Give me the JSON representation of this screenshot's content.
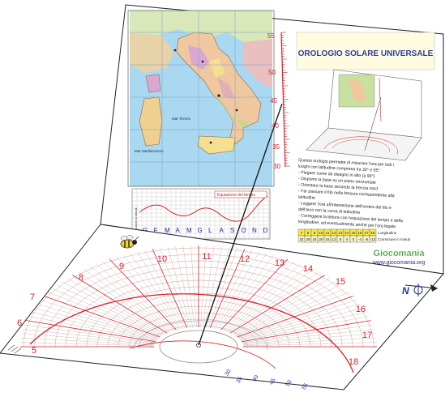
{
  "title": "OROLOGIO SOLARE UNIVERSALE",
  "latitude_scale": {
    "labels": [
      "55",
      "50",
      "45",
      "40",
      "35",
      "30"
    ]
  },
  "instructions": [
    "Questo orologio permette di misurare l'ora per tutti i",
    "luoghi con latitudine compresa tra 30° e 55°:",
    "- Piegare come da disegno in alto (a 90°)",
    "- Disporre la base su un piano orizzontale",
    "- Orientare la base secondo la freccia nord",
    "- Far passare il filo nella fessura corrispondente alla",
    "  latitudine",
    "- Leggere l'ora all'intersezione dell'ombra del filo e",
    "  dell'arco con la curva di latitudine",
    "- Correggere la lettura con l'equazione del tempo e della",
    "  longitudine, ed eventualmente anche per l'ora legale."
  ],
  "longitude_table": {
    "row1": [
      "7",
      "8",
      "9",
      "10",
      "11",
      "12",
      "13",
      "14",
      "15",
      "16",
      "17",
      "18"
    ],
    "row1_label": "Longitudine",
    "row2": [
      "32",
      "28",
      "24",
      "20",
      "16",
      "12",
      "8",
      "4",
      "0",
      "-4",
      "-8",
      "-12"
    ],
    "row2_label": "Correzione in minuti"
  },
  "equation_chart": {
    "ylabel": "Correzione in minuti",
    "legend": "Equazione del tempo",
    "months": [
      "G",
      "F",
      "M",
      "A",
      "M",
      "G",
      "L",
      "A",
      "S",
      "O",
      "N",
      "D"
    ]
  },
  "map_labels": {
    "sea": "Mar Mediterraneo",
    "sea2": "Mar Tirreno"
  },
  "brand": {
    "logo_text": "Giocomania",
    "url": "www.giocomania.org"
  },
  "hours_red": [
    "5",
    "6",
    "7",
    "8",
    "9",
    "10",
    "11",
    "12",
    "13",
    "14",
    "15",
    "16",
    "17",
    "18"
  ],
  "latitude_arc_labels": [
    "30",
    "35",
    "40",
    "45",
    "50",
    "55"
  ],
  "north_label": "N",
  "colors": {
    "red": "#d2232a",
    "blue": "#1b2fa8",
    "title_blue": "#2f3f9a",
    "note_yellow": "#fffbe0",
    "map_green": "#cfe3a6"
  }
}
